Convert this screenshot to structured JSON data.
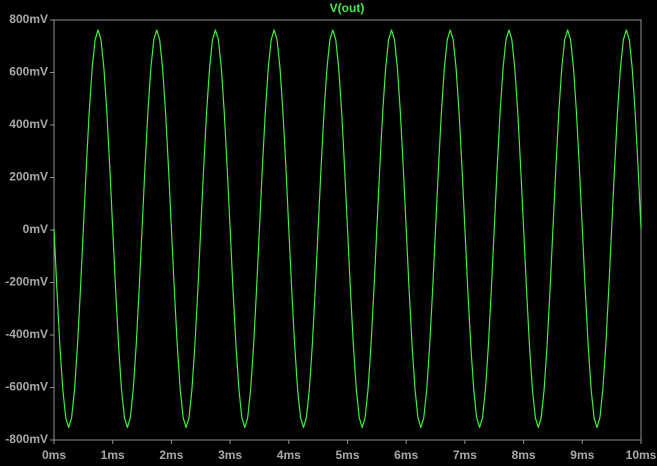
{
  "chart_data": {
    "type": "line",
    "series": [
      {
        "name": "V(out)",
        "color": "#3cf03c",
        "values": [
          5,
          -229,
          -440,
          -607,
          -715,
          -752,
          -715,
          -607,
          -440,
          -229,
          5,
          239,
          450,
          617,
          725,
          762,
          725,
          617,
          450,
          239,
          5,
          -229,
          -440,
          -607,
          -715,
          -752,
          -715,
          -607,
          -440,
          -229,
          5,
          239,
          450,
          617,
          725,
          762,
          725,
          617,
          450,
          239,
          5,
          -229,
          -440,
          -607,
          -715,
          -752,
          -715,
          -607,
          -440,
          -229,
          5,
          239,
          450,
          617,
          725,
          762,
          725,
          617,
          450,
          239,
          5,
          -229,
          -440,
          -607,
          -715,
          -752,
          -715,
          -607,
          -440,
          -229,
          5,
          239,
          450,
          617,
          725,
          762,
          725,
          617,
          450,
          239,
          5,
          -229,
          -440,
          -607,
          -715,
          -752,
          -715,
          -607,
          -440,
          -229,
          5,
          239,
          450,
          617,
          725,
          762,
          725,
          617,
          450,
          239,
          5,
          -229,
          -440,
          -607,
          -715,
          -752,
          -715,
          -607,
          -440,
          -229,
          5,
          239,
          450,
          617,
          725,
          762,
          725,
          617,
          450,
          239,
          5,
          -229,
          -440,
          -607,
          -715,
          -752,
          -715,
          -607,
          -440,
          -229,
          5,
          239,
          450,
          617,
          725,
          762,
          725,
          617,
          450,
          239,
          5,
          -229,
          -440,
          -607,
          -715,
          -752,
          -715,
          -607,
          -440,
          -229,
          5,
          239,
          450,
          617,
          725,
          762,
          725,
          617,
          450,
          239,
          5,
          -229,
          -440,
          -607,
          -715,
          -752,
          -715,
          -607,
          -440,
          -229,
          5,
          239,
          450,
          617,
          725,
          762,
          725,
          617,
          450,
          239,
          5,
          -229,
          -440,
          -607,
          -715,
          -752,
          -715,
          -607,
          -440,
          -229,
          5,
          239,
          450,
          617,
          725,
          762,
          725,
          617,
          450,
          239,
          5
        ]
      }
    ],
    "x": [
      0,
      0.05,
      0.1,
      0.15,
      0.2,
      0.25,
      0.3,
      0.35,
      0.4,
      0.45,
      0.5,
      0.55,
      0.6,
      0.65,
      0.7,
      0.75,
      0.8,
      0.85,
      0.9,
      0.95,
      1,
      1.05,
      1.1,
      1.15,
      1.2,
      1.25,
      1.3,
      1.35,
      1.4,
      1.45,
      1.5,
      1.55,
      1.6,
      1.65,
      1.7,
      1.75,
      1.8,
      1.85,
      1.9,
      1.95,
      2,
      2.05,
      2.1,
      2.15,
      2.2,
      2.25,
      2.3,
      2.35,
      2.4,
      2.45,
      2.5,
      2.55,
      2.6,
      2.65,
      2.7,
      2.75,
      2.8,
      2.85,
      2.9,
      2.95,
      3,
      3.05,
      3.1,
      3.15,
      3.2,
      3.25,
      3.3,
      3.35,
      3.4,
      3.45,
      3.5,
      3.55,
      3.6,
      3.65,
      3.7,
      3.75,
      3.8,
      3.85,
      3.9,
      3.95,
      4,
      4.05,
      4.1,
      4.15,
      4.2,
      4.25,
      4.3,
      4.35,
      4.4,
      4.45,
      4.5,
      4.55,
      4.6,
      4.65,
      4.7,
      4.75,
      4.8,
      4.85,
      4.9,
      4.95,
      5,
      5.05,
      5.1,
      5.15,
      5.2,
      5.25,
      5.3,
      5.35,
      5.4,
      5.45,
      5.5,
      5.55,
      5.6,
      5.65,
      5.7,
      5.75,
      5.8,
      5.85,
      5.9,
      5.95,
      6,
      6.05,
      6.1,
      6.15,
      6.2,
      6.25,
      6.3,
      6.35,
      6.4,
      6.45,
      6.5,
      6.55,
      6.6,
      6.65,
      6.7,
      6.75,
      6.8,
      6.85,
      6.9,
      6.95,
      7,
      7.05,
      7.1,
      7.15,
      7.2,
      7.25,
      7.3,
      7.35,
      7.4,
      7.45,
      7.5,
      7.55,
      7.6,
      7.65,
      7.7,
      7.75,
      7.8,
      7.85,
      7.9,
      7.95,
      8,
      8.05,
      8.1,
      8.15,
      8.2,
      8.25,
      8.3,
      8.35,
      8.4,
      8.45,
      8.5,
      8.55,
      8.6,
      8.65,
      8.7,
      8.75,
      8.8,
      8.85,
      8.9,
      8.95,
      9,
      9.05,
      9.1,
      9.15,
      9.2,
      9.25,
      9.3,
      9.35,
      9.4,
      9.45,
      9.5,
      9.55,
      9.6,
      9.65,
      9.7,
      9.75,
      9.8,
      9.85,
      9.9,
      9.95,
      10
    ],
    "xlim": [
      0,
      10
    ],
    "xticks": [
      {
        "value": 0,
        "label": "0ms"
      },
      {
        "value": 1,
        "label": "1ms"
      },
      {
        "value": 2,
        "label": "2ms"
      },
      {
        "value": 3,
        "label": "3ms"
      },
      {
        "value": 4,
        "label": "4ms"
      },
      {
        "value": 5,
        "label": "5ms"
      },
      {
        "value": 6,
        "label": "6ms"
      },
      {
        "value": 7,
        "label": "7ms"
      },
      {
        "value": 8,
        "label": "8ms"
      },
      {
        "value": 9,
        "label": "9ms"
      },
      {
        "value": 10,
        "label": "10ms"
      }
    ],
    "ylim": [
      -800,
      800
    ],
    "yticks": [
      {
        "value": -800,
        "label": "-800mV"
      },
      {
        "value": -600,
        "label": "-600mV"
      },
      {
        "value": -400,
        "label": "-400mV"
      },
      {
        "value": -200,
        "label": "-200mV"
      },
      {
        "value": 0,
        "label": "0mV"
      },
      {
        "value": 200,
        "label": "200mV"
      },
      {
        "value": 400,
        "label": "400mV"
      },
      {
        "value": 600,
        "label": "600mV"
      },
      {
        "value": 800,
        "label": "800mV"
      }
    ],
    "grid": false
  }
}
